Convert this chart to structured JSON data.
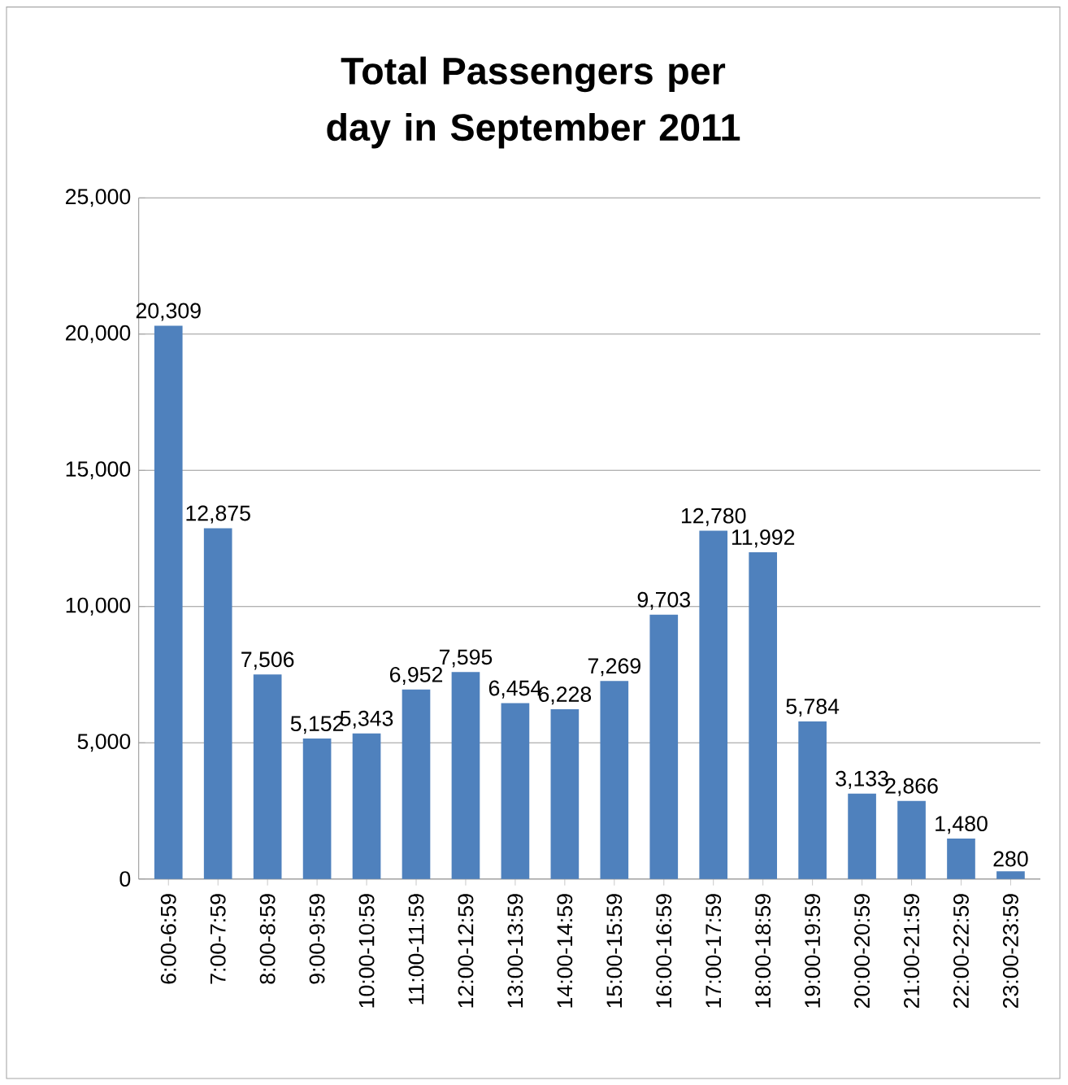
{
  "chart_data": {
    "type": "bar",
    "title": "Total Passengers per day in September 2011",
    "categories": [
      "6:00-6:59",
      "7:00-7:59",
      "8:00-8:59",
      "9:00-9:59",
      "10:00-10:59",
      "11:00-11:59",
      "12:00-12:59",
      "13:00-13:59",
      "14:00-14:59",
      "15:00-15:59",
      "16:00-16:59",
      "17:00-17:59",
      "18:00-18:59",
      "19:00-19:59",
      "20:00-20:59",
      "21:00-21:59",
      "22:00-22:59",
      "23:00-23:59"
    ],
    "values": [
      20309,
      12875,
      7506,
      5152,
      5343,
      6952,
      7595,
      6454,
      6228,
      7269,
      9703,
      12780,
      11992,
      5784,
      3133,
      2866,
      1480,
      280
    ],
    "value_labels": [
      "20,309",
      "12,875",
      "7,506",
      "5,152",
      "5,343",
      "6,952",
      "7,595",
      "6,454",
      "6,228",
      "7,269",
      "9,703",
      "12,780",
      "11,992",
      "5,784",
      "3,133",
      "2,866",
      "1,480",
      "280"
    ],
    "color": "#4f81bd",
    "ylim": [
      0,
      25000
    ],
    "yticks": [
      {
        "value": 0,
        "label": "0"
      },
      {
        "value": 5000,
        "label": "5,000"
      },
      {
        "value": 10000,
        "label": "10,000"
      },
      {
        "value": 15000,
        "label": "15,000"
      },
      {
        "value": 20000,
        "label": "20,000"
      },
      {
        "value": 25000,
        "label": "25,000"
      }
    ],
    "grid": "y"
  }
}
